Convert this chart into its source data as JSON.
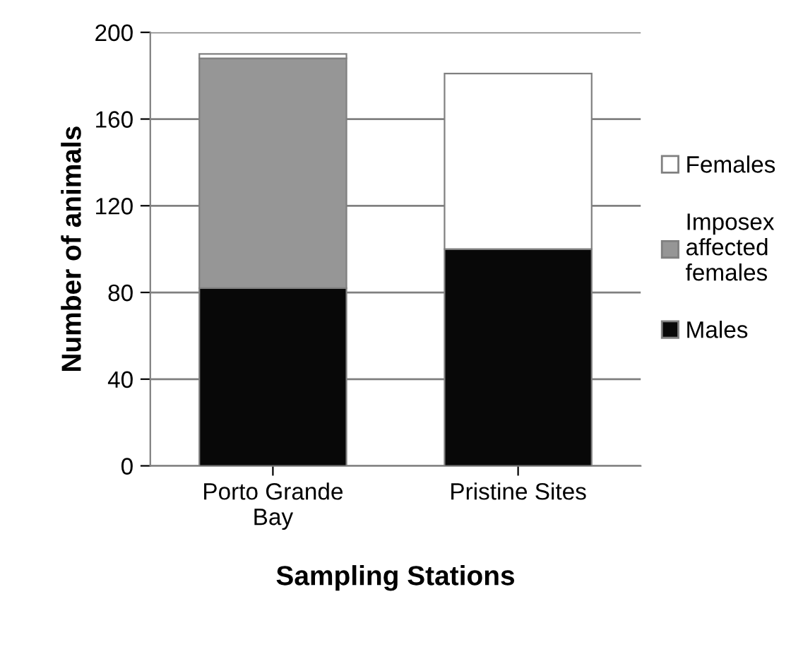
{
  "chart_data": {
    "type": "bar",
    "stacked": true,
    "xlabel": "Sampling Stations",
    "ylabel": "Number of animals",
    "categories": [
      "Porto Grande\nBay",
      "Pristine Sites"
    ],
    "series": [
      {
        "name": "Males",
        "color": "#080808",
        "values": [
          82,
          100
        ]
      },
      {
        "name": "Imposex\naffected\nfemales",
        "color": "#969696",
        "values": [
          106,
          0
        ]
      },
      {
        "name": "Females",
        "color": "#ffffff",
        "values": [
          2,
          81
        ]
      }
    ],
    "ylim": [
      0,
      200
    ],
    "yticks": [
      0,
      40,
      80,
      120,
      160,
      200
    ],
    "grid": "y",
    "legend": "right"
  }
}
